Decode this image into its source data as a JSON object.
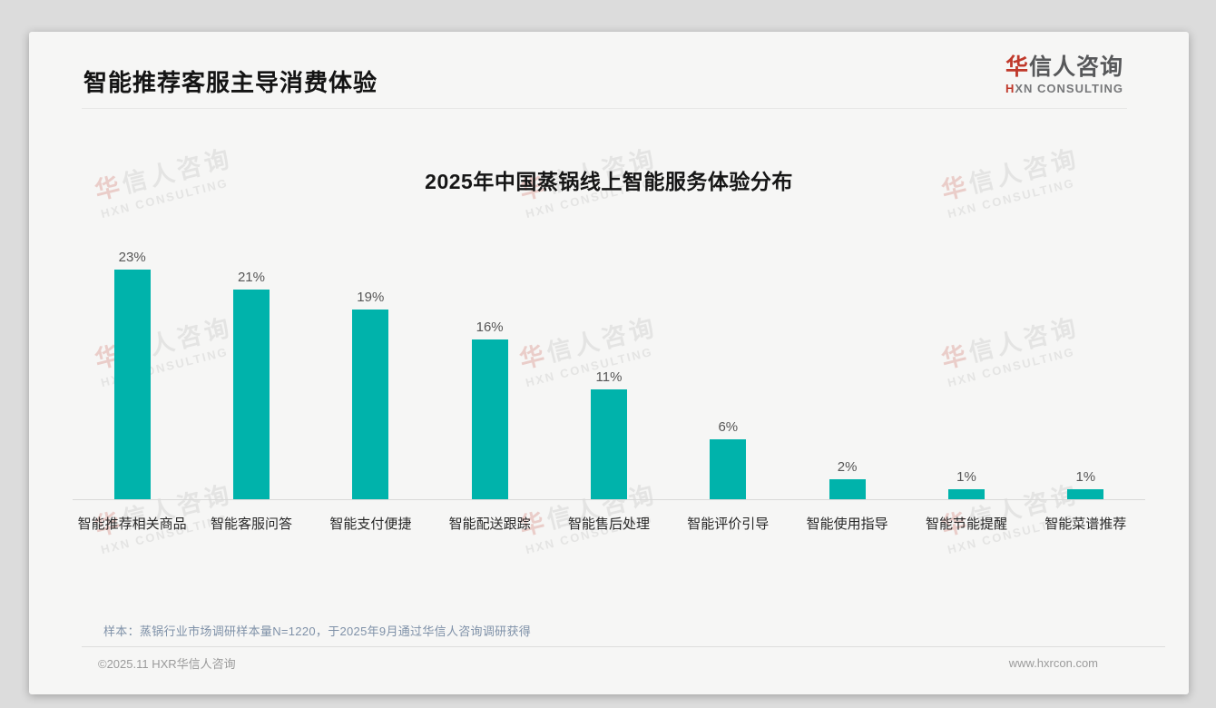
{
  "page": {
    "title": "智能推荐客服主导消费体验",
    "sample_note": "样本：蒸锅行业市场调研样本量N=1220，于2025年9月通过华信人咨询调研获得",
    "footer_left": "©2025.11 HXR华信人咨询",
    "footer_right": "www.hxrcon.com"
  },
  "brand": {
    "logo_cn_first": "华",
    "logo_cn_rest": "信人咨询",
    "logo_en_first": "H",
    "logo_en_rest": "XN CONSULTING",
    "watermark_line1_first": "华",
    "watermark_line1_rest": "信人咨询",
    "watermark_line2": "HXN CONSULTING"
  },
  "colors": {
    "bar": "#00b3ab",
    "accent_red": "#c0392b"
  },
  "chart_data": {
    "type": "bar",
    "title": "2025年中国蒸锅线上智能服务体验分布",
    "categories": [
      "智能推荐相关商品",
      "智能客服问答",
      "智能支付便捷",
      "智能配送跟踪",
      "智能售后处理",
      "智能评价引导",
      "智能使用指导",
      "智能节能提醒",
      "智能菜谱推荐"
    ],
    "values": [
      23,
      21,
      19,
      16,
      11,
      6,
      2,
      1,
      1
    ],
    "value_labels": [
      "23%",
      "21%",
      "19%",
      "16%",
      "11%",
      "6%",
      "2%",
      "1%",
      "1%"
    ],
    "unit": "%",
    "ylim": [
      0,
      25
    ],
    "grid": false,
    "legend": false,
    "bar_color": "#00b3ab"
  }
}
